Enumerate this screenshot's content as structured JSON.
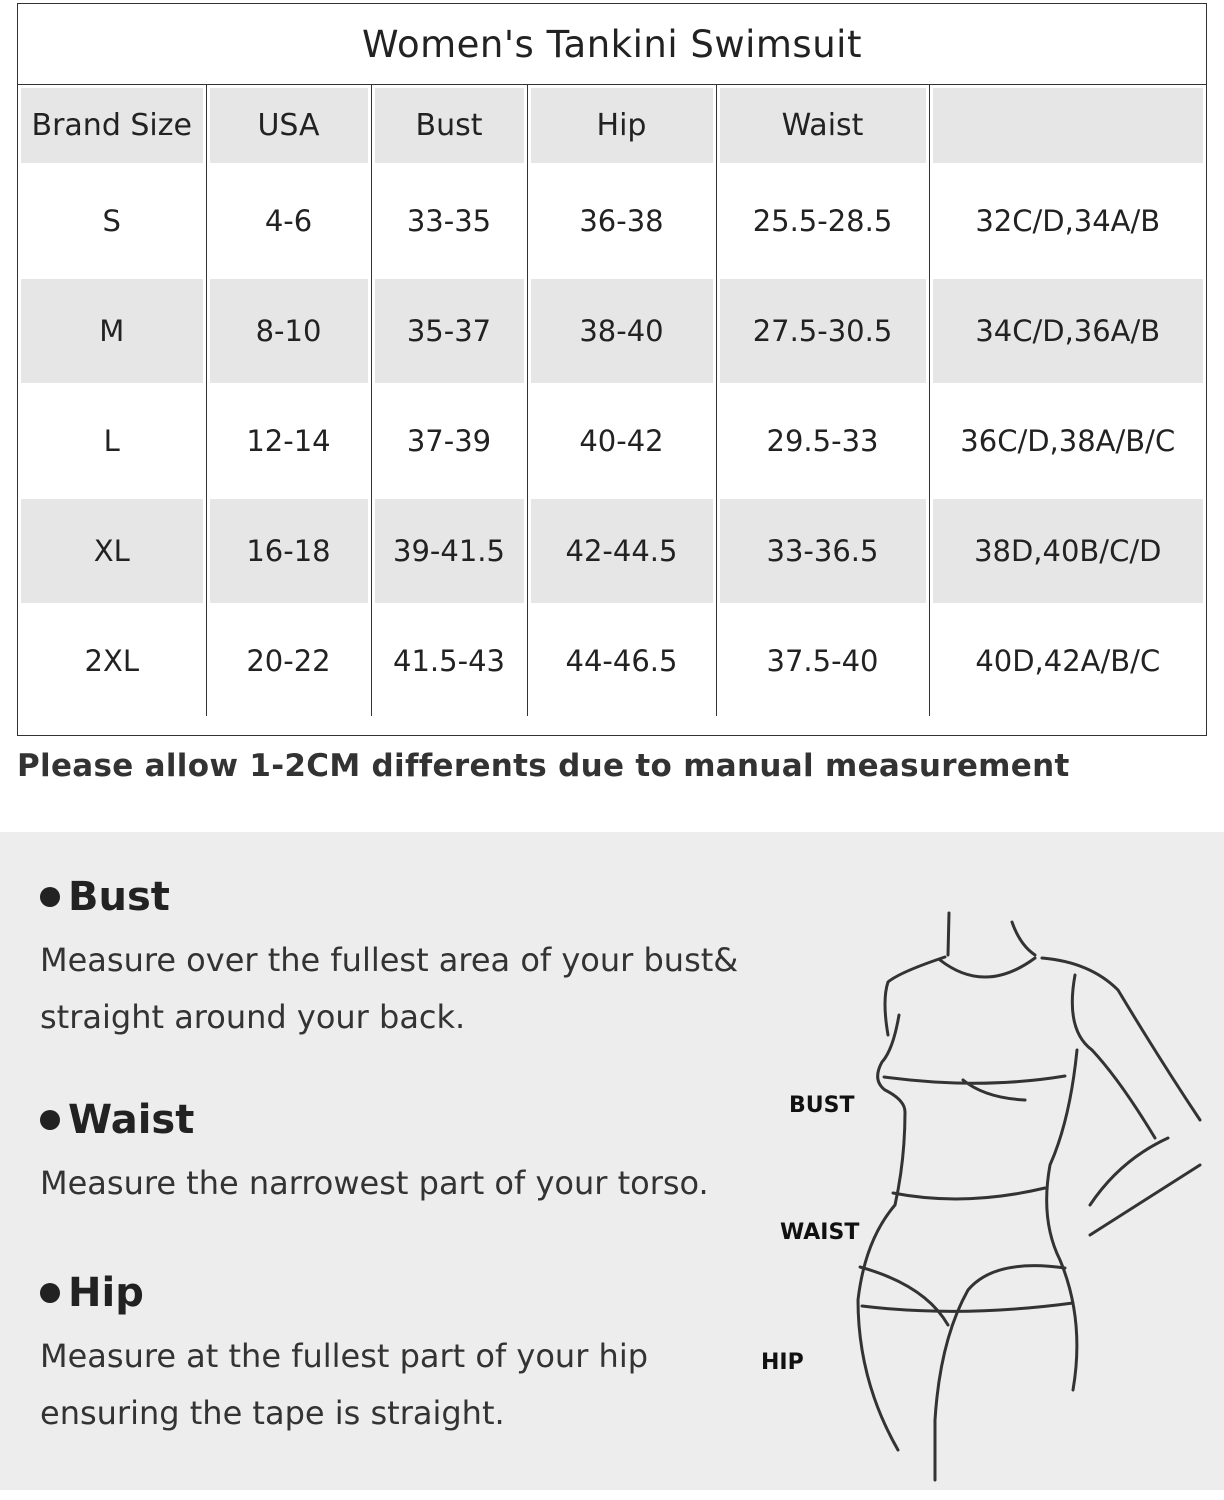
{
  "title": "Women's Tankini Swimsuit",
  "headers": [
    "Brand Size",
    "USA",
    "Bust",
    "Hip",
    "Waist",
    ""
  ],
  "rows": [
    [
      "S",
      "4-6",
      "33-35",
      "36-38",
      "25.5-28.5",
      "32C/D,34A/B"
    ],
    [
      "M",
      "8-10",
      "35-37",
      "38-40",
      "27.5-30.5",
      "34C/D,36A/B"
    ],
    [
      "L",
      "12-14",
      "37-39",
      "40-42",
      "29.5-33",
      "36C/D,38A/B/C"
    ],
    [
      "XL",
      "16-18",
      "39-41.5",
      "42-44.5",
      "33-36.5",
      "38D,40B/C/D"
    ],
    [
      "2XL",
      "20-22",
      "41.5-43",
      "44-46.5",
      "37.5-40",
      "40D,42A/B/C"
    ]
  ],
  "note": "Please allow 1-2CM differents due to manual measurement",
  "guide": [
    {
      "heading": "Bust",
      "text": "Measure over the fullest area of your bust& straight around your back."
    },
    {
      "heading": "Waist",
      "text": "Measure the narrowest part of your torso."
    },
    {
      "heading": "Hip",
      "text": "Measure at the fullest part of your hip ensuring the tape is straight."
    }
  ],
  "figure_labels": {
    "bust": "BUST",
    "waist": "WAIST",
    "hip": "HIP"
  },
  "colors": {
    "row_shade": "#e6e6e6",
    "panel_bg": "#eeedee"
  }
}
